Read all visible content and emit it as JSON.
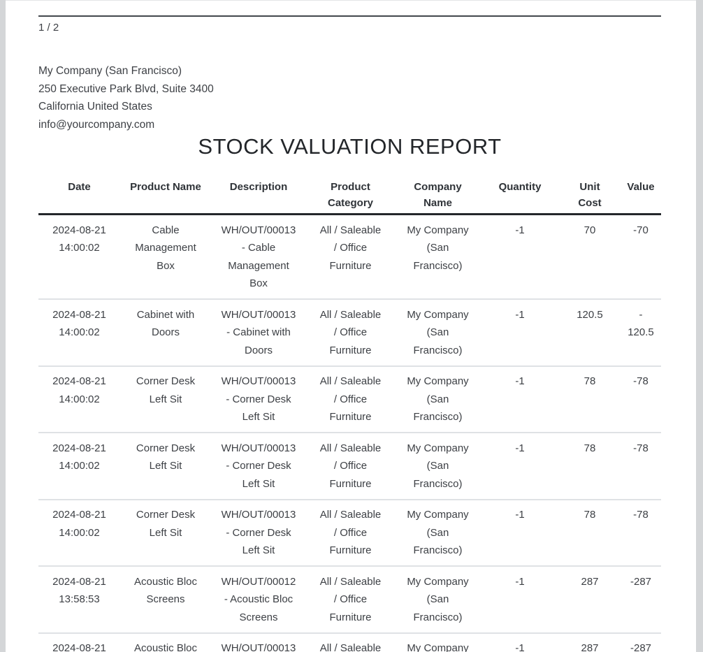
{
  "report": {
    "page_indicator": "1 / 2",
    "company_block": {
      "name": "My Company (San Francisco)",
      "street": "250 Executive Park Blvd, Suite 3400",
      "region": "California United States",
      "email": "info@yourcompany.com"
    },
    "title": "STOCK VALUATION REPORT"
  },
  "table": {
    "columns": [
      {
        "key": "date",
        "label": "Date"
      },
      {
        "key": "product_name",
        "label": "Product Name"
      },
      {
        "key": "description",
        "label": "Description"
      },
      {
        "key": "product_category",
        "label": "Product\nCategory"
      },
      {
        "key": "company_name",
        "label": "Company\nName"
      },
      {
        "key": "quantity",
        "label": "Quantity"
      },
      {
        "key": "unit_cost",
        "label": "Unit\nCost"
      },
      {
        "key": "value",
        "label": "Value"
      }
    ],
    "rows": [
      {
        "date": "2024-08-21\n14:00:02",
        "product_name": "Cable\nManagement\nBox",
        "description": "WH/OUT/00013\n- Cable\nManagement\nBox",
        "product_category": "All / Saleable\n/ Office\nFurniture",
        "company_name": "My Company\n(San\nFrancisco)",
        "quantity": "-1",
        "unit_cost": "70",
        "value": "-70"
      },
      {
        "date": "2024-08-21\n14:00:02",
        "product_name": "Cabinet with\nDoors",
        "description": "WH/OUT/00013\n- Cabinet with\nDoors",
        "product_category": "All / Saleable\n/ Office\nFurniture",
        "company_name": "My Company\n(San\nFrancisco)",
        "quantity": "-1",
        "unit_cost": "120.5",
        "value": "-\n120.5"
      },
      {
        "date": "2024-08-21\n14:00:02",
        "product_name": "Corner Desk\nLeft Sit",
        "description": "WH/OUT/00013\n- Corner Desk\nLeft Sit",
        "product_category": "All / Saleable\n/ Office\nFurniture",
        "company_name": "My Company\n(San\nFrancisco)",
        "quantity": "-1",
        "unit_cost": "78",
        "value": "-78"
      },
      {
        "date": "2024-08-21\n14:00:02",
        "product_name": "Corner Desk\nLeft Sit",
        "description": "WH/OUT/00013\n- Corner Desk\nLeft Sit",
        "product_category": "All / Saleable\n/ Office\nFurniture",
        "company_name": "My Company\n(San\nFrancisco)",
        "quantity": "-1",
        "unit_cost": "78",
        "value": "-78"
      },
      {
        "date": "2024-08-21\n14:00:02",
        "product_name": "Corner Desk\nLeft Sit",
        "description": "WH/OUT/00013\n- Corner Desk\nLeft Sit",
        "product_category": "All / Saleable\n/ Office\nFurniture",
        "company_name": "My Company\n(San\nFrancisco)",
        "quantity": "-1",
        "unit_cost": "78",
        "value": "-78"
      },
      {
        "date": "2024-08-21\n13:58:53",
        "product_name": "Acoustic Bloc\nScreens",
        "description": "WH/OUT/00012\n- Acoustic Bloc\nScreens",
        "product_category": "All / Saleable\n/ Office\nFurniture",
        "company_name": "My Company\n(San\nFrancisco)",
        "quantity": "-1",
        "unit_cost": "287",
        "value": "-287"
      },
      {
        "date": "2024-08-21",
        "product_name": "Acoustic Bloc",
        "description": "WH/OUT/00013",
        "product_category": "All / Saleable",
        "company_name": "My Company",
        "quantity": "-1",
        "unit_cost": "287",
        "value": "-287"
      }
    ]
  },
  "colors": {
    "page_background": "#ffffff",
    "gutter": "#d4d6d8",
    "text": "#3d4045",
    "header_rule": "#43474c",
    "table_header_border": "#24272b",
    "row_divider": "#dfe2e5"
  }
}
